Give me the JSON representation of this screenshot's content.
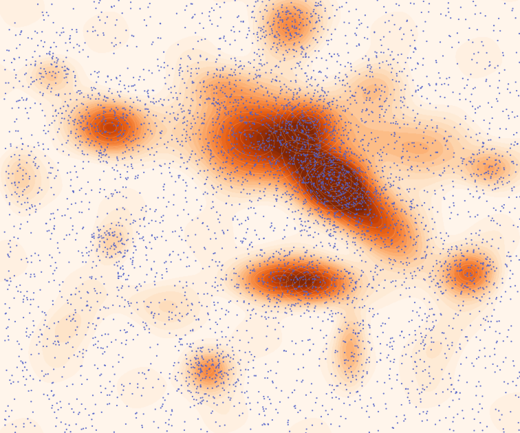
{
  "chart_data": {
    "type": "scatter",
    "variant": "2d-density-contour-with-points",
    "title": "",
    "xlabel": "",
    "ylabel": "",
    "xlim": [
      0,
      100
    ],
    "ylim": [
      0,
      100
    ],
    "grid": false,
    "legend": "none",
    "axes_visible": false,
    "colors": {
      "density_low": "#fff5eb",
      "density_mid": "#f7a35c",
      "density_high": "#e8590c",
      "density_peak": "#8a2a05",
      "points": "#5060c8"
    },
    "density_clusters": [
      {
        "x": 20.5,
        "y": 70.5,
        "sx": 4.5,
        "sy": 4.0,
        "rot": 0,
        "w": 0.85
      },
      {
        "x": 48.0,
        "y": 68.0,
        "sx": 8.0,
        "sy": 7.0,
        "rot": -15,
        "w": 0.8
      },
      {
        "x": 59.0,
        "y": 71.0,
        "sx": 4.0,
        "sy": 4.0,
        "rot": 0,
        "w": 0.7
      },
      {
        "x": 66.0,
        "y": 55.0,
        "sx": 11.0,
        "sy": 4.2,
        "rot": -40,
        "w": 1.1
      },
      {
        "x": 64.0,
        "y": 58.0,
        "sx": 4.0,
        "sy": 4.0,
        "rot": 0,
        "w": 0.7
      },
      {
        "x": 53.5,
        "y": 35.5,
        "sx": 6.0,
        "sy": 3.2,
        "rot": 0,
        "w": 0.78
      },
      {
        "x": 61.0,
        "y": 34.5,
        "sx": 4.5,
        "sy": 3.2,
        "rot": 0,
        "w": 0.62
      },
      {
        "x": 90.0,
        "y": 37.0,
        "sx": 3.5,
        "sy": 3.5,
        "rot": 0,
        "w": 0.65
      },
      {
        "x": 39.5,
        "y": 14.5,
        "sx": 3.0,
        "sy": 3.3,
        "rot": 0,
        "w": 0.55
      },
      {
        "x": 55.0,
        "y": 94.0,
        "sx": 4.0,
        "sy": 4.5,
        "rot": 0,
        "w": 0.5
      },
      {
        "x": 77.0,
        "y": 66.0,
        "sx": 9.0,
        "sy": 5.0,
        "rot": -10,
        "w": 0.35
      },
      {
        "x": 94.0,
        "y": 61.0,
        "sx": 3.5,
        "sy": 3.0,
        "rot": 0,
        "w": 0.35
      },
      {
        "x": 67.0,
        "y": 20.0,
        "sx": 2.0,
        "sy": 6.0,
        "rot": 0,
        "w": 0.3
      },
      {
        "x": 9.0,
        "y": 83.0,
        "sx": 3.0,
        "sy": 3.0,
        "rot": 0,
        "w": 0.28
      },
      {
        "x": 21.0,
        "y": 44.0,
        "sx": 2.5,
        "sy": 3.0,
        "rot": 0,
        "w": 0.22
      },
      {
        "x": 72.0,
        "y": 80.0,
        "sx": 5.0,
        "sy": 4.0,
        "rot": 0,
        "w": 0.25
      },
      {
        "x": 42.0,
        "y": 80.0,
        "sx": 4.0,
        "sy": 3.0,
        "rot": 0,
        "w": 0.25
      },
      {
        "x": 30.0,
        "y": 30.0,
        "sx": 6.0,
        "sy": 4.0,
        "rot": 0,
        "w": 0.1
      },
      {
        "x": 12.0,
        "y": 25.0,
        "sx": 5.0,
        "sy": 4.0,
        "rot": 0,
        "w": 0.12
      },
      {
        "x": 82.0,
        "y": 20.0,
        "sx": 5.0,
        "sy": 4.0,
        "rot": 0,
        "w": 0.12
      },
      {
        "x": 3.0,
        "y": 60.0,
        "sx": 2.5,
        "sy": 5.0,
        "rot": 0,
        "w": 0.18
      }
    ],
    "point_cluster_counts": [
      260,
      520,
      220,
      620,
      260,
      160,
      160,
      140,
      180,
      240,
      90,
      90,
      80,
      80,
      120,
      120,
      60,
      60,
      60,
      60,
      60
    ],
    "background_point_count": 2600,
    "random_seed": 1337
  }
}
